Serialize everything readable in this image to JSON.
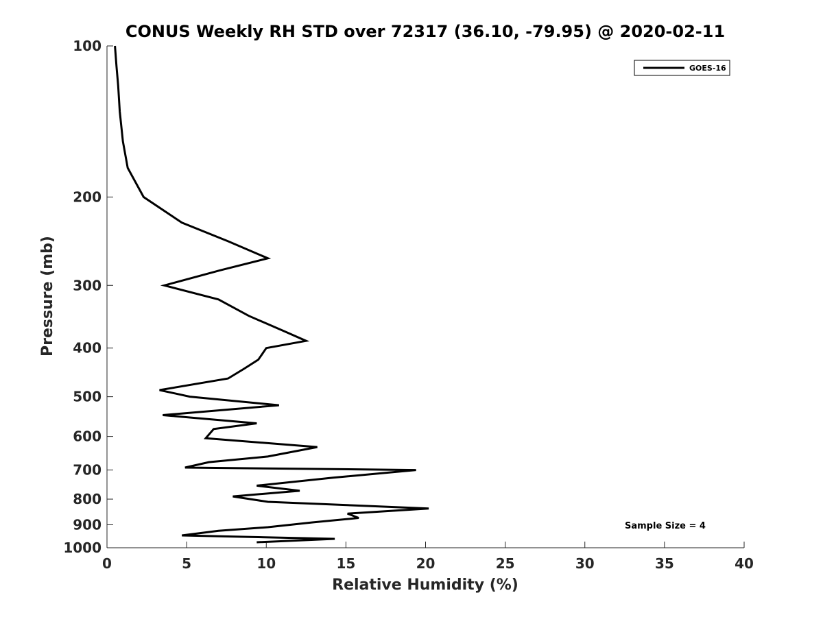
{
  "chart_data": {
    "type": "line",
    "title": "CONUS Weekly RH STD over 72317 (36.10, -79.95) @ 2020-02-11",
    "xlabel": "Relative Humidity (%)",
    "ylabel": "Pressure (mb)",
    "xlim": [
      0,
      40
    ],
    "ylim": [
      100,
      1000
    ],
    "yscale": "log",
    "yreversed": true,
    "grid": false,
    "legend_position": "top-right",
    "xticks": [
      0,
      5,
      10,
      15,
      20,
      25,
      30,
      35,
      40
    ],
    "yticks": [
      100,
      200,
      300,
      400,
      500,
      600,
      700,
      800,
      900,
      1000
    ],
    "series": [
      {
        "name": "GOES-16",
        "color": "#000000",
        "rh": [
          0.5,
          0.6,
          0.7,
          0.8,
          1.0,
          1.3,
          2.3,
          4.7,
          7.6,
          10.1,
          7.1,
          3.6,
          7.0,
          8.9,
          11.1,
          12.5,
          10.0,
          9.5,
          8.6,
          7.6,
          3.3,
          5.2,
          10.8,
          3.5,
          9.4,
          6.7,
          6.2,
          13.2,
          10.1,
          6.4,
          4.9,
          19.4,
          14.2,
          9.4,
          12.1,
          7.9,
          10.1,
          20.2,
          15.1,
          15.8,
          12.9,
          10.1,
          7.0,
          4.7,
          14.3,
          9.4
        ],
        "pressure": [
          100,
          110,
          120,
          135,
          155,
          175,
          200,
          225,
          245,
          265,
          280,
          300,
          320,
          345,
          370,
          387,
          400,
          422,
          440,
          460,
          485,
          500,
          520,
          544,
          565,
          580,
          605,
          630,
          658,
          675,
          692,
          700,
          725,
          752,
          770,
          790,
          810,
          835,
          855,
          872,
          890,
          910,
          925,
          945,
          960,
          975
        ]
      }
    ],
    "annotation": "Sample Size = 4"
  }
}
